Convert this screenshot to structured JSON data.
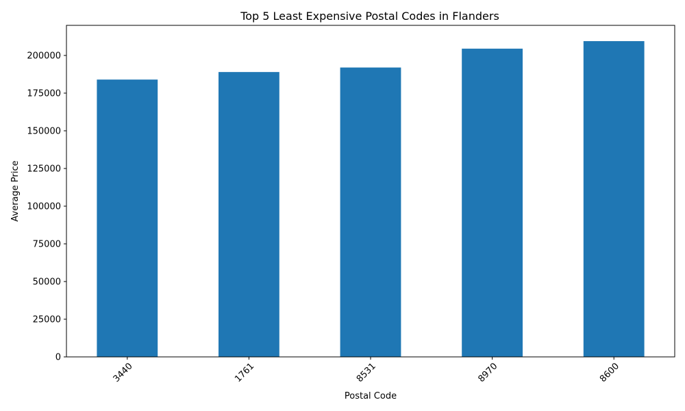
{
  "chart_data": {
    "type": "bar",
    "title": "Top 5 Least Expensive Postal Codes in Flanders",
    "xlabel": "Postal Code",
    "ylabel": "Average Price",
    "categories": [
      "3440",
      "1761",
      "8531",
      "8970",
      "8600"
    ],
    "values": [
      184000,
      189000,
      192000,
      204500,
      209500
    ],
    "ylim": [
      0,
      219975
    ],
    "yticks": [
      0,
      25000,
      50000,
      75000,
      100000,
      125000,
      150000,
      175000,
      200000
    ],
    "bar_color": "#1f77b4",
    "grid": false,
    "legend": "none",
    "xtick_rotation": 45
  }
}
